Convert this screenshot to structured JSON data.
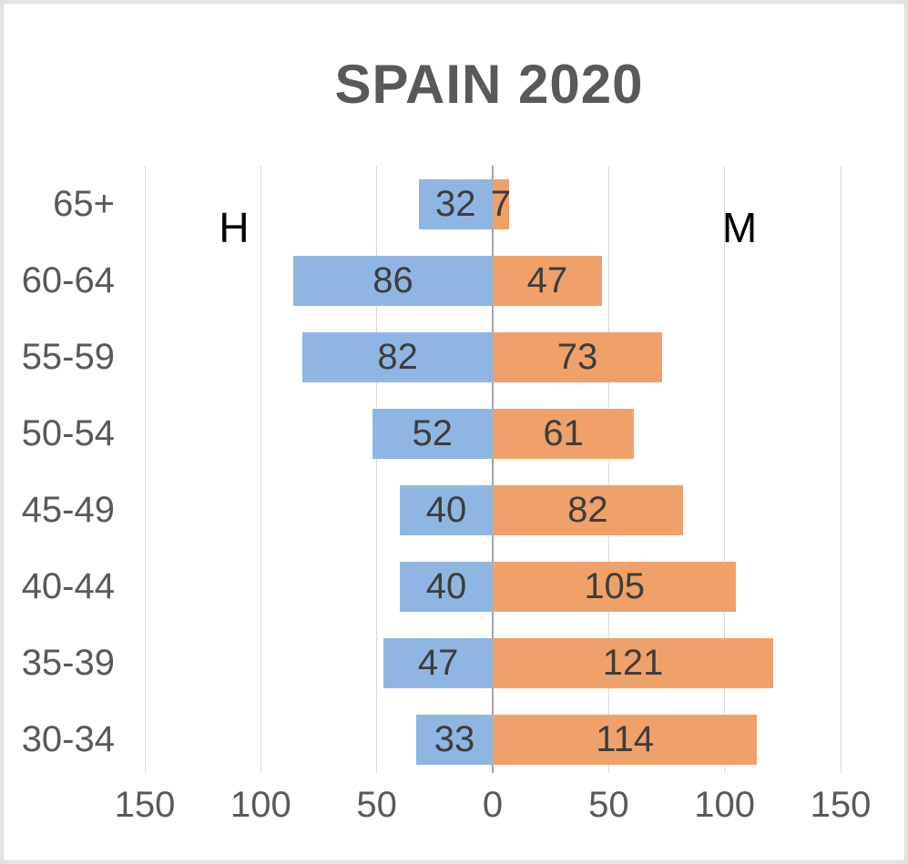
{
  "title": "SPAIN 2020",
  "side_labels": {
    "left": "H",
    "right": "M"
  },
  "chart_data": {
    "type": "bar",
    "subtype": "population_pyramid",
    "orientation": "horizontal",
    "title": "SPAIN 2020",
    "categories": [
      "65+",
      "60-64",
      "55-59",
      "50-54",
      "45-49",
      "40-44",
      "35-39",
      "30-34"
    ],
    "series": [
      {
        "name": "H",
        "side": "left",
        "color": "#8fb6e2",
        "values": [
          32,
          86,
          82,
          52,
          40,
          40,
          47,
          33
        ]
      },
      {
        "name": "M",
        "side": "right",
        "color": "#f0a169",
        "values": [
          7,
          47,
          73,
          61,
          82,
          105,
          121,
          114
        ]
      }
    ],
    "x_axis": {
      "tick_labels": [
        "150",
        "100",
        "50",
        "0",
        "50",
        "100",
        "150"
      ],
      "max": 150,
      "gridlines": true
    },
    "value_labels_shown": true,
    "legend_position": "inside-top (H left, M right)"
  },
  "colors": {
    "background": "#ffffff",
    "frame_border": "#e2e2e2",
    "gridline": "#d9d9d9",
    "zero_axis": "#a6a6a6",
    "title_text": "#595959",
    "category_text": "#595959",
    "tick_text": "#595959",
    "value_text": "#3d3d3d",
    "side_label_text": "#000000",
    "bar_left": "#8fb6e2",
    "bar_right": "#f0a169"
  }
}
